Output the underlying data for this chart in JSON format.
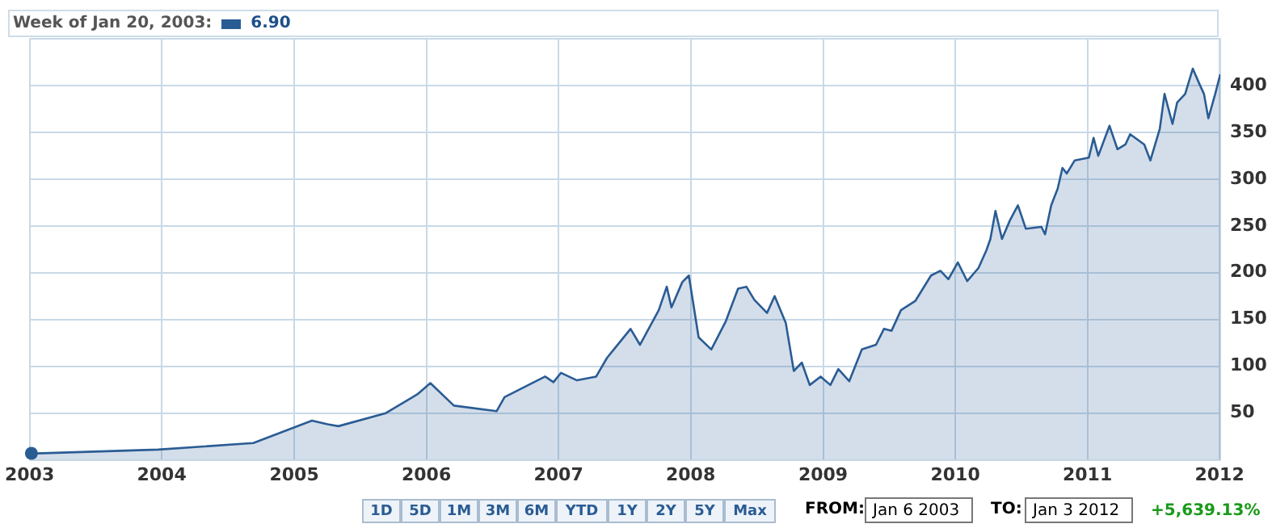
{
  "chart_data": {
    "type": "area",
    "x": [
      "2003-01-06",
      "2003-01-20",
      "2003-12-22",
      "2004-09-10",
      "2005-02-19",
      "2005-04-03",
      "2005-05-03",
      "2005-09-11",
      "2005-12-07",
      "2006-01-12",
      "2006-03-18",
      "2006-07-14",
      "2006-08-05",
      "2006-11-25",
      "2006-12-18",
      "2007-01-08",
      "2007-02-21",
      "2007-04-15",
      "2007-05-15",
      "2007-07-19",
      "2007-08-14",
      "2007-10-05",
      "2007-10-27",
      "2007-11-09",
      "2007-12-09",
      "2007-12-27",
      "2008-01-23",
      "2008-02-27",
      "2008-04-07",
      "2008-05-11",
      "2008-06-03",
      "2008-06-25",
      "2008-07-30",
      "2008-08-20",
      "2008-09-20",
      "2008-10-12",
      "2008-11-03",
      "2008-11-25",
      "2008-12-25",
      "2009-01-21",
      "2009-02-12",
      "2009-03-14",
      "2009-04-18",
      "2009-05-27",
      "2009-06-18",
      "2009-07-09",
      "2009-08-04",
      "2009-09-13",
      "2009-10-26",
      "2009-11-21",
      "2009-12-13",
      "2010-01-08",
      "2010-02-03",
      "2010-03-06",
      "2010-03-28",
      "2010-04-08",
      "2010-04-22",
      "2010-05-10",
      "2010-06-01",
      "2010-06-23",
      "2010-07-15",
      "2010-08-27",
      "2010-09-06",
      "2010-09-23",
      "2010-10-11",
      "2010-10-24",
      "2010-11-05",
      "2010-11-27",
      "2011-01-05",
      "2011-01-18",
      "2011-01-31",
      "2011-03-03",
      "2011-03-25",
      "2011-04-16",
      "2011-04-29",
      "2011-06-07",
      "2011-06-24",
      "2011-07-20",
      "2011-08-02",
      "2011-08-24",
      "2011-09-06",
      "2011-09-28",
      "2011-10-19",
      "2011-11-06",
      "2011-11-19",
      "2011-12-01",
      "2011-12-20",
      "2012-01-03"
    ],
    "series": [
      {
        "color": "#2a5c94",
        "values": [
          7,
          6.9,
          11,
          18,
          42,
          38,
          36,
          50,
          70,
          82,
          58,
          52,
          67,
          89,
          83,
          93,
          85,
          89,
          109,
          140,
          123,
          160,
          185,
          163,
          190,
          197,
          131,
          118,
          148,
          183,
          185,
          171,
          157,
          175,
          146,
          95,
          104,
          80,
          89,
          80,
          97,
          84,
          118,
          123,
          140,
          138,
          160,
          170,
          197,
          202,
          193,
          211,
          191,
          205,
          224,
          236,
          266,
          236,
          256,
          272,
          247,
          249,
          241,
          272,
          290,
          312,
          306,
          320,
          323,
          344,
          325,
          357,
          332,
          337,
          348,
          337,
          320,
          354,
          391,
          359,
          382,
          391,
          418,
          402,
          391,
          365,
          391,
          412
        ]
      }
    ],
    "xlim": [
      "2003-01-01",
      "2012-01-03"
    ],
    "xticks": [
      {
        "value": "2003-01-01",
        "label": "2003"
      },
      {
        "value": "2004-01-01",
        "label": "2004"
      },
      {
        "value": "2005-01-01",
        "label": "2005"
      },
      {
        "value": "2006-01-01",
        "label": "2006"
      },
      {
        "value": "2007-01-01",
        "label": "2007"
      },
      {
        "value": "2008-01-01",
        "label": "2008"
      },
      {
        "value": "2009-01-01",
        "label": "2009"
      },
      {
        "value": "2010-01-01",
        "label": "2010"
      },
      {
        "value": "2011-01-01",
        "label": "2011"
      },
      {
        "value": "2012-01-01",
        "label": "2012"
      }
    ],
    "ylim": [
      0,
      450
    ],
    "yticks": [
      50,
      100,
      150,
      200,
      250,
      300,
      350,
      400,
      {
        "value": 450,
        "label": null
      }
    ],
    "grid": true,
    "annotations": [
      "Week of Jan 20, 2003:",
      "6.90",
      "1D",
      "5D",
      "1M",
      "3M",
      "6M",
      "YTD",
      "1Y",
      "2Y",
      "5Y",
      "Max",
      "FROM:",
      "Jan 6 2003",
      "TO:",
      "Jan 3 2012",
      "+5,639.13%"
    ]
  }
}
